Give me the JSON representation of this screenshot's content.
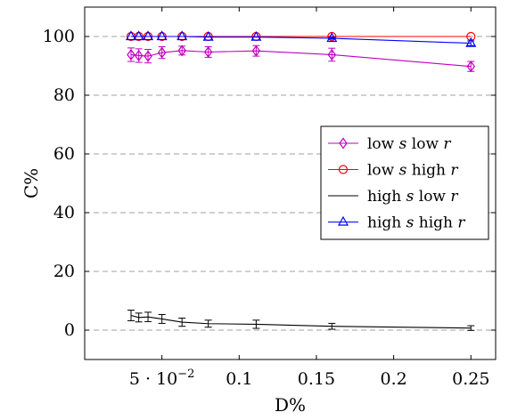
{
  "chart_data": {
    "type": "line",
    "xlabel": "D%",
    "ylabel": "C%",
    "xlim": [
      0.0,
      0.266
    ],
    "ylim": [
      -10,
      110
    ],
    "grid": "y-dashed",
    "x_ticks": [
      {
        "value": 0.05,
        "label": "5 · 10",
        "sup": "−2"
      },
      {
        "value": 0.1,
        "label": "0.1",
        "sup": ""
      },
      {
        "value": 0.15,
        "label": "0.15",
        "sup": ""
      },
      {
        "value": 0.2,
        "label": "0.2",
        "sup": ""
      },
      {
        "value": 0.25,
        "label": "0.25",
        "sup": ""
      }
    ],
    "y_ticks": [
      {
        "value": 0,
        "label": "0"
      },
      {
        "value": 20,
        "label": "20"
      },
      {
        "value": 40,
        "label": "40"
      },
      {
        "value": 60,
        "label": "60"
      },
      {
        "value": 80,
        "label": "80"
      },
      {
        "value": 100,
        "label": "100"
      }
    ],
    "x": [
      0.03,
      0.035,
      0.041,
      0.05,
      0.063,
      0.08,
      0.111,
      0.16,
      0.25
    ],
    "legend_position": "center-right",
    "series": [
      {
        "name_parts": [
          "low ",
          "s",
          " low ",
          "r"
        ],
        "color": "#bf00bf",
        "marker": "diamond",
        "values": [
          93.8,
          93.5,
          93.3,
          94.5,
          95.2,
          94.7,
          95.1,
          93.8,
          89.8
        ],
        "errors": [
          2.3,
          2.3,
          2.3,
          2.0,
          1.5,
          1.8,
          1.8,
          2.2,
          1.7
        ]
      },
      {
        "name_parts": [
          "low ",
          "s",
          " high ",
          "r"
        ],
        "color": "#ff0000",
        "marker": "circle",
        "values": [
          100,
          100,
          100,
          100,
          100,
          100,
          100,
          100,
          100
        ],
        "errors": [
          0,
          0,
          0,
          0,
          0,
          0,
          0,
          0,
          0
        ]
      },
      {
        "name_parts": [
          "high ",
          "s",
          " low ",
          "r"
        ],
        "color": "#000000",
        "marker": "none",
        "values": [
          5.0,
          4.3,
          4.5,
          3.8,
          2.7,
          2.2,
          2.0,
          1.3,
          0.7
        ],
        "errors": [
          1.8,
          1.5,
          1.6,
          1.5,
          1.4,
          1.2,
          1.4,
          1.0,
          0.8
        ]
      },
      {
        "name_parts": [
          "high ",
          "s",
          " high ",
          "r"
        ],
        "color": "#0000ff",
        "marker": "triangle",
        "values": [
          100,
          100,
          100,
          100,
          100,
          99.8,
          99.8,
          99.4,
          97.7
        ],
        "errors": [
          0,
          0,
          0,
          0,
          0,
          0,
          0,
          0.3,
          0.8
        ]
      }
    ]
  }
}
